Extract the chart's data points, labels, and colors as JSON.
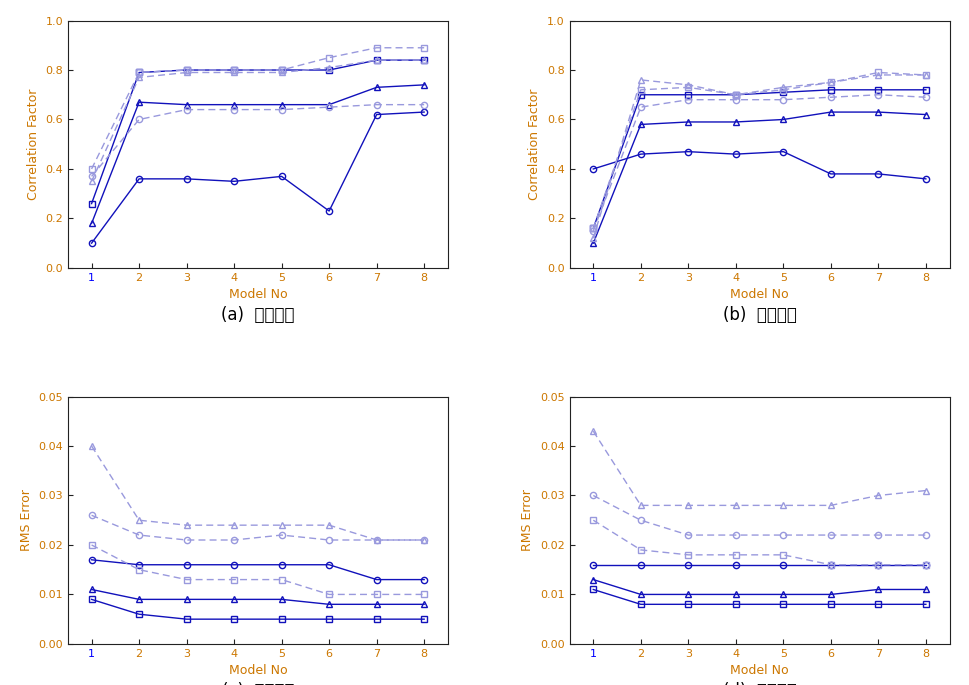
{
  "x": [
    1,
    2,
    3,
    4,
    5,
    6,
    7,
    8
  ],
  "corr_train": {
    "solid_circle": [
      0.1,
      0.36,
      0.36,
      0.35,
      0.37,
      0.23,
      0.62,
      0.63
    ],
    "solid_square": [
      0.26,
      0.79,
      0.8,
      0.8,
      0.8,
      0.8,
      0.84,
      0.84
    ],
    "solid_triangle": [
      0.18,
      0.67,
      0.66,
      0.66,
      0.66,
      0.66,
      0.73,
      0.74
    ],
    "dash_circle": [
      0.37,
      0.6,
      0.64,
      0.64,
      0.64,
      0.65,
      0.66,
      0.66
    ],
    "dash_square": [
      0.4,
      0.79,
      0.8,
      0.8,
      0.8,
      0.85,
      0.89,
      0.89
    ],
    "dash_triangle": [
      0.35,
      0.77,
      0.79,
      0.79,
      0.79,
      0.81,
      0.84,
      0.84
    ]
  },
  "corr_test": {
    "solid_circle": [
      0.4,
      0.46,
      0.47,
      0.46,
      0.47,
      0.38,
      0.38,
      0.36
    ],
    "solid_square": [
      0.16,
      0.7,
      0.7,
      0.7,
      0.71,
      0.72,
      0.72,
      0.72
    ],
    "solid_triangle": [
      0.1,
      0.58,
      0.59,
      0.59,
      0.6,
      0.63,
      0.63,
      0.62
    ],
    "dash_circle": [
      0.15,
      0.65,
      0.68,
      0.68,
      0.68,
      0.69,
      0.7,
      0.69
    ],
    "dash_square": [
      0.16,
      0.72,
      0.73,
      0.7,
      0.72,
      0.75,
      0.79,
      0.78
    ],
    "dash_triangle": [
      0.12,
      0.76,
      0.74,
      0.7,
      0.73,
      0.75,
      0.78,
      0.78
    ]
  },
  "rms_train": {
    "solid_circle": [
      0.017,
      0.016,
      0.016,
      0.016,
      0.016,
      0.016,
      0.013,
      0.013
    ],
    "solid_square": [
      0.009,
      0.006,
      0.005,
      0.005,
      0.005,
      0.005,
      0.005,
      0.005
    ],
    "solid_triangle": [
      0.011,
      0.009,
      0.009,
      0.009,
      0.009,
      0.008,
      0.008,
      0.008
    ],
    "dash_circle": [
      0.026,
      0.022,
      0.021,
      0.021,
      0.022,
      0.021,
      0.021,
      0.021
    ],
    "dash_square": [
      0.02,
      0.015,
      0.013,
      0.013,
      0.013,
      0.01,
      0.01,
      0.01
    ],
    "dash_triangle": [
      0.04,
      0.025,
      0.024,
      0.024,
      0.024,
      0.024,
      0.021,
      0.021
    ]
  },
  "rms_test": {
    "solid_circle": [
      0.016,
      0.016,
      0.016,
      0.016,
      0.016,
      0.016,
      0.016,
      0.016
    ],
    "solid_square": [
      0.011,
      0.008,
      0.008,
      0.008,
      0.008,
      0.008,
      0.008,
      0.008
    ],
    "solid_triangle": [
      0.013,
      0.01,
      0.01,
      0.01,
      0.01,
      0.01,
      0.011,
      0.011
    ],
    "dash_circle": [
      0.03,
      0.025,
      0.022,
      0.022,
      0.022,
      0.022,
      0.022,
      0.022
    ],
    "dash_square": [
      0.025,
      0.019,
      0.018,
      0.018,
      0.018,
      0.016,
      0.016,
      0.016
    ],
    "dash_triangle": [
      0.043,
      0.028,
      0.028,
      0.028,
      0.028,
      0.028,
      0.03,
      0.031
    ]
  },
  "color_solid_dark": "#1111bb",
  "color_solid_light": "#8888cc",
  "color_dash_dark": "#3333dd",
  "color_dash_light": "#9999dd",
  "label_color": "#cc7700",
  "tick_color": "#cc7700",
  "spine_color": "#222222",
  "subtitles": [
    "(a)  훈련자료",
    "(b)  시험자료",
    "(c)  훈련자료",
    "(d)  시험자료"
  ],
  "xlabel": "Model No",
  "ylabel_corr": "Correlation Factor",
  "ylabel_rms": "RMS Error",
  "ylim_corr": [
    0,
    1.0
  ],
  "ylim_rms": [
    0,
    0.05
  ],
  "yticks_corr": [
    0,
    0.2,
    0.4,
    0.6,
    0.8,
    1.0
  ],
  "yticks_rms": [
    0,
    0.01,
    0.02,
    0.03,
    0.04,
    0.05
  ],
  "xticks": [
    1,
    2,
    3,
    4,
    5,
    6,
    7,
    8
  ]
}
